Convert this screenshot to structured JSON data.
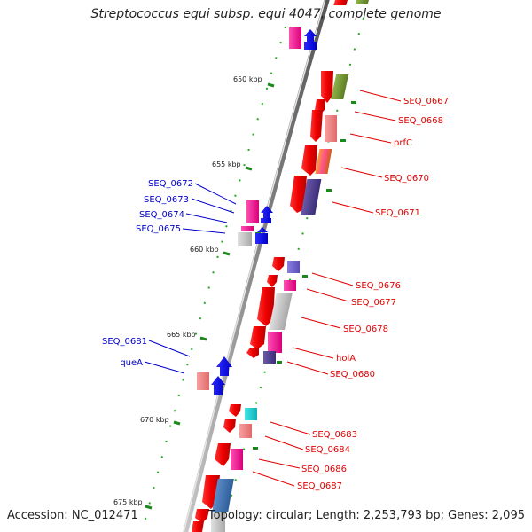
{
  "title": "Streptococcus equi subsp. equi 4047, complete genome",
  "accession": "Accession: NC_012471",
  "topology": "Topology: circular; Length: 2,253,793 bp; Genes: 2,095",
  "colors": {
    "backbone": "#9a9a9a",
    "tick": "#1a8a1a",
    "label_right": "#e00000",
    "label_left": "#0000cc"
  },
  "ticks": [
    {
      "label": "650 kbp"
    },
    {
      "label": "655 kbp"
    },
    {
      "label": "660 kbp"
    },
    {
      "label": "665 kbp"
    },
    {
      "label": "670 kbp"
    },
    {
      "label": "675 kbp"
    }
  ],
  "labels_right": [
    "SEQ_0667",
    "SEQ_0668",
    "prfC",
    "SEQ_0670",
    "SEQ_0671",
    "SEQ_0676",
    "SEQ_0677",
    "SEQ_0678",
    "holA",
    "SEQ_0680",
    "SEQ_0683",
    "SEQ_0684",
    "SEQ_0686",
    "SEQ_0687"
  ],
  "labels_left": [
    "SEQ_0672",
    "SEQ_0673",
    "SEQ_0674",
    "SEQ_0675",
    "SEQ_0681",
    "queA"
  ]
}
